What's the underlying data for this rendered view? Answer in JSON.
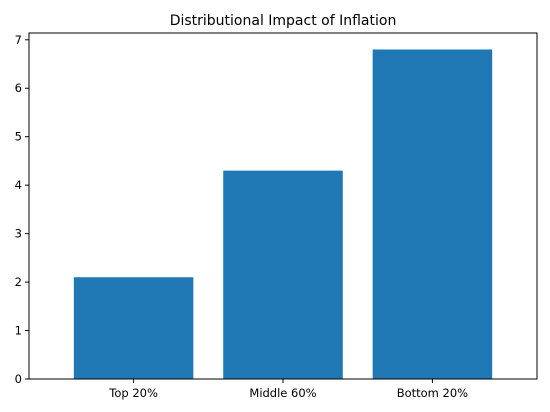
{
  "chart_data": {
    "type": "bar",
    "title": "Distributional Impact of Inflation",
    "categories": [
      "Top 20%",
      "Middle 60%",
      "Bottom 20%"
    ],
    "values": [
      2.1,
      4.3,
      6.8
    ],
    "xlabel": "",
    "ylabel": "",
    "ylim": [
      0,
      7.14
    ],
    "yticks": [
      "0",
      "1",
      "2",
      "3",
      "4",
      "5",
      "6",
      "7"
    ],
    "grid": false,
    "bar_color": "#1f77b4"
  }
}
